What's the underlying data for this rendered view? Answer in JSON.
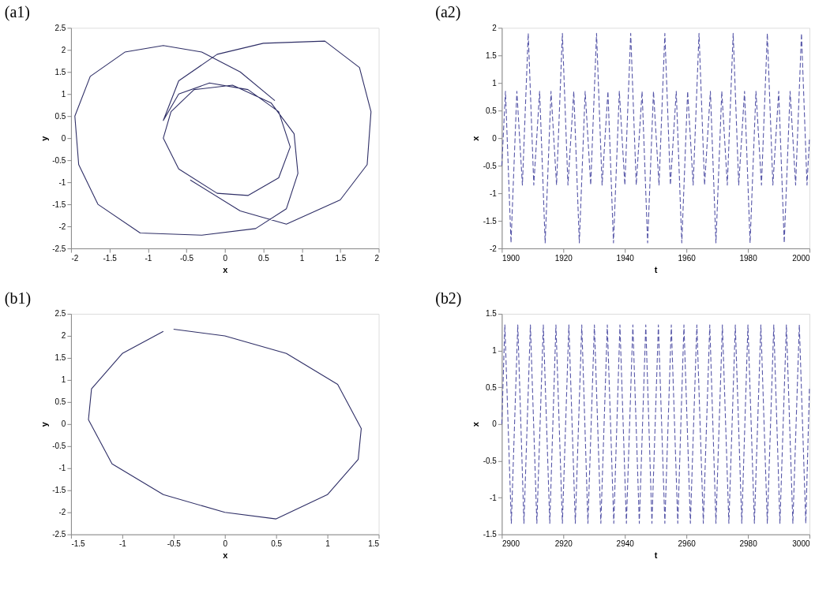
{
  "chart_data": [
    {
      "type": "line",
      "title": "(a1)",
      "xlabel": "x",
      "ylabel": "y",
      "color": "#2e2e66",
      "line_style": "solid",
      "x": [
        0.65,
        0.2,
        -0.3,
        -0.8,
        -1.3,
        -1.75,
        -1.95,
        -1.9,
        -1.65,
        -1.1,
        -0.3,
        0.4,
        0.8,
        0.95,
        0.9,
        0.6,
        0.1,
        -0.4,
        -0.7,
        -0.8,
        -0.6,
        -0.1,
        0.3,
        0.7,
        0.85,
        0.7,
        0.3,
        -0.2,
        -0.6,
        -0.8,
        -0.6,
        -0.1,
        0.5,
        1.3,
        1.75,
        1.9,
        1.85,
        1.5,
        0.8,
        0.2,
        -0.45
      ],
      "values": [
        0.85,
        1.5,
        1.95,
        2.1,
        1.95,
        1.4,
        0.5,
        -0.6,
        -1.5,
        -2.15,
        -2.2,
        -2.05,
        -1.6,
        -0.8,
        0.1,
        0.8,
        1.2,
        1.1,
        0.6,
        0.0,
        -0.7,
        -1.25,
        -1.3,
        -0.9,
        -0.2,
        0.6,
        1.1,
        1.25,
        1.0,
        0.4,
        1.3,
        1.9,
        2.15,
        2.2,
        1.6,
        0.6,
        -0.6,
        -1.4,
        -1.95,
        -1.65,
        -0.95
      ],
      "xlim": [
        -2,
        2
      ],
      "ylim": [
        -2.5,
        2.5
      ],
      "xticks": [
        -2,
        -1.5,
        -1,
        -0.5,
        0,
        0.5,
        1,
        1.5,
        2
      ],
      "yticks": [
        -2.5,
        -2,
        -1.5,
        -1,
        -0.5,
        0,
        0.5,
        1,
        1.5,
        2,
        2.5
      ]
    },
    {
      "type": "line",
      "title": "(a2)",
      "xlabel": "t",
      "ylabel": "x",
      "color": "#5656a8",
      "line_style": "dashed",
      "x": [
        1900,
        1901.2,
        1903.0,
        1904.9,
        1906.7,
        1908.6,
        1910.4,
        1912.3,
        1914.1,
        1916.0,
        1917.8,
        1919.7,
        1921.5,
        1923.4,
        1925.2,
        1927.1,
        1928.9,
        1930.8,
        1932.6,
        1934.5,
        1936.3,
        1938.2,
        1940.0,
        1941.9,
        1943.7,
        1945.6,
        1947.4,
        1949.3,
        1951.1,
        1953.0,
        1954.8,
        1956.7,
        1958.5,
        1960.4,
        1962.2,
        1964.1,
        1965.9,
        1967.8,
        1969.6,
        1971.5,
        1973.3,
        1975.2,
        1977.0,
        1978.9,
        1980.7,
        1982.6,
        1984.4,
        1986.3,
        1988.1,
        1990.0,
        1991.8,
        1993.7,
        1995.5,
        1997.4,
        1999.2,
        2000
      ],
      "values": [
        -0.5,
        0.85,
        -1.9,
        0.85,
        -0.85,
        1.9,
        -0.85,
        0.85,
        -1.9,
        0.85,
        -0.85,
        1.9,
        -0.85,
        0.85,
        -1.9,
        0.85,
        -0.85,
        1.9,
        -0.85,
        0.85,
        -1.9,
        0.85,
        -0.85,
        1.9,
        -0.85,
        0.85,
        -1.9,
        0.85,
        -0.85,
        1.9,
        -0.85,
        0.85,
        -1.9,
        0.85,
        -0.85,
        1.9,
        -0.85,
        0.85,
        -1.9,
        0.85,
        -0.85,
        1.9,
        -0.85,
        0.85,
        -1.9,
        0.85,
        -0.85,
        1.9,
        -0.85,
        0.85,
        -1.9,
        0.85,
        -0.85,
        1.9,
        -0.85,
        0.0
      ],
      "xlim": [
        1900,
        2000
      ],
      "ylim": [
        -2,
        2
      ],
      "xticks": [
        1900,
        1920,
        1940,
        1960,
        1980,
        2000
      ],
      "yticks": [
        -2,
        -1.5,
        -1,
        -0.5,
        0,
        0.5,
        1,
        1.5,
        2
      ]
    },
    {
      "type": "line",
      "title": "(b1)",
      "xlabel": "x",
      "ylabel": "y",
      "color": "#2e2e66",
      "line_style": "solid",
      "x": [
        -0.5,
        0,
        0.6,
        1.1,
        1.33,
        1.3,
        1.0,
        0.5,
        0,
        -0.6,
        -1.1,
        -1.33,
        -1.3,
        -1.0,
        -0.6
      ],
      "values": [
        2.15,
        2.0,
        1.6,
        0.9,
        -0.1,
        -0.8,
        -1.6,
        -2.15,
        -2.0,
        -1.6,
        -0.9,
        0.1,
        0.8,
        1.6,
        2.1
      ],
      "xlim": [
        -1.5,
        1.5
      ],
      "ylim": [
        -2.5,
        2.5
      ],
      "xticks": [
        -1.5,
        -1,
        -0.5,
        0,
        0.5,
        1,
        1.5
      ],
      "yticks": [
        -2.5,
        -2,
        -1.5,
        -1,
        -0.5,
        0,
        0.5,
        1,
        1.5,
        2,
        2.5
      ]
    },
    {
      "type": "line",
      "title": "(b2)",
      "xlabel": "t",
      "ylabel": "x",
      "color": "#5656a8",
      "line_style": "dashed",
      "x": [
        2900,
        2901.0,
        2903.1,
        2905.2,
        2907.2,
        2909.3,
        2911.4,
        2913.5,
        2915.6,
        2917.6,
        2919.7,
        2921.8,
        2923.9,
        2926.0,
        2928.0,
        2930.1,
        2932.2,
        2934.3,
        2936.4,
        2938.4,
        2940.5,
        2942.6,
        2944.7,
        2946.8,
        2948.8,
        2950.9,
        2953.0,
        2955.1,
        2957.2,
        2959.2,
        2961.3,
        2963.4,
        2965.5,
        2967.6,
        2969.6,
        2971.7,
        2973.8,
        2975.9,
        2978.0,
        2980.0,
        2982.1,
        2984.2,
        2986.3,
        2988.4,
        2990.4,
        2992.5,
        2994.6,
        2996.7,
        2998.8,
        3000
      ],
      "values": [
        0.0,
        1.35,
        -1.35,
        1.35,
        -1.35,
        1.35,
        -1.35,
        1.35,
        -1.35,
        1.35,
        -1.35,
        1.35,
        -1.35,
        1.35,
        -1.35,
        1.35,
        -1.35,
        1.35,
        -1.35,
        1.35,
        -1.35,
        1.35,
        -1.35,
        1.35,
        -1.35,
        1.35,
        -1.35,
        1.35,
        -1.35,
        1.35,
        -1.35,
        1.35,
        -1.35,
        1.35,
        -1.35,
        1.35,
        -1.35,
        1.35,
        -1.35,
        1.35,
        -1.35,
        1.35,
        -1.35,
        1.35,
        -1.35,
        1.35,
        -1.35,
        1.35,
        -1.35,
        0.5
      ],
      "xlim": [
        2900,
        3000
      ],
      "ylim": [
        -1.5,
        1.5
      ],
      "xticks": [
        2900,
        2920,
        2940,
        2960,
        2980,
        3000
      ],
      "yticks": [
        -1.5,
        -1,
        -0.5,
        0,
        0.5,
        1,
        1.5
      ]
    }
  ]
}
